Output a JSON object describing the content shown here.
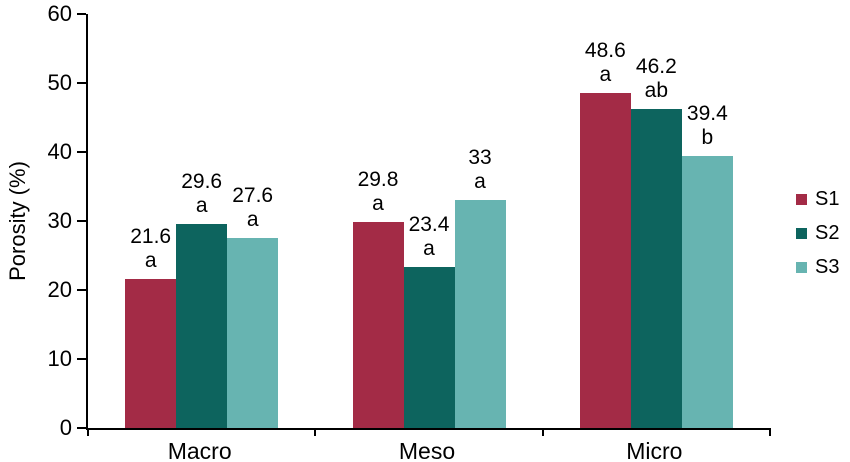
{
  "chart_data": {
    "type": "bar",
    "title": "",
    "xlabel": "",
    "ylabel": "Porosity (%)",
    "ylim": [
      0,
      60
    ],
    "yticks": [
      0,
      10,
      20,
      30,
      40,
      50,
      60
    ],
    "grid": false,
    "legend_position": "right",
    "categories": [
      "Macro",
      "Meso",
      "Micro"
    ],
    "series": [
      {
        "name": "S1",
        "color": "#a32b46",
        "values": [
          21.6,
          29.8,
          48.6
        ],
        "value_labels": [
          "21.6",
          "29.8",
          "48.6"
        ],
        "sig_letters": [
          "a",
          "a",
          "a"
        ]
      },
      {
        "name": "S2",
        "color": "#0d645e",
        "values": [
          29.6,
          23.4,
          46.2
        ],
        "value_labels": [
          "29.6",
          "23.4",
          "46.2"
        ],
        "sig_letters": [
          "a",
          "a",
          "ab"
        ]
      },
      {
        "name": "S3",
        "color": "#67b4b1",
        "values": [
          27.6,
          33,
          39.4
        ],
        "value_labels": [
          "27.6",
          "33",
          "39.4"
        ],
        "sig_letters": [
          "a",
          "a",
          "b"
        ]
      }
    ]
  }
}
